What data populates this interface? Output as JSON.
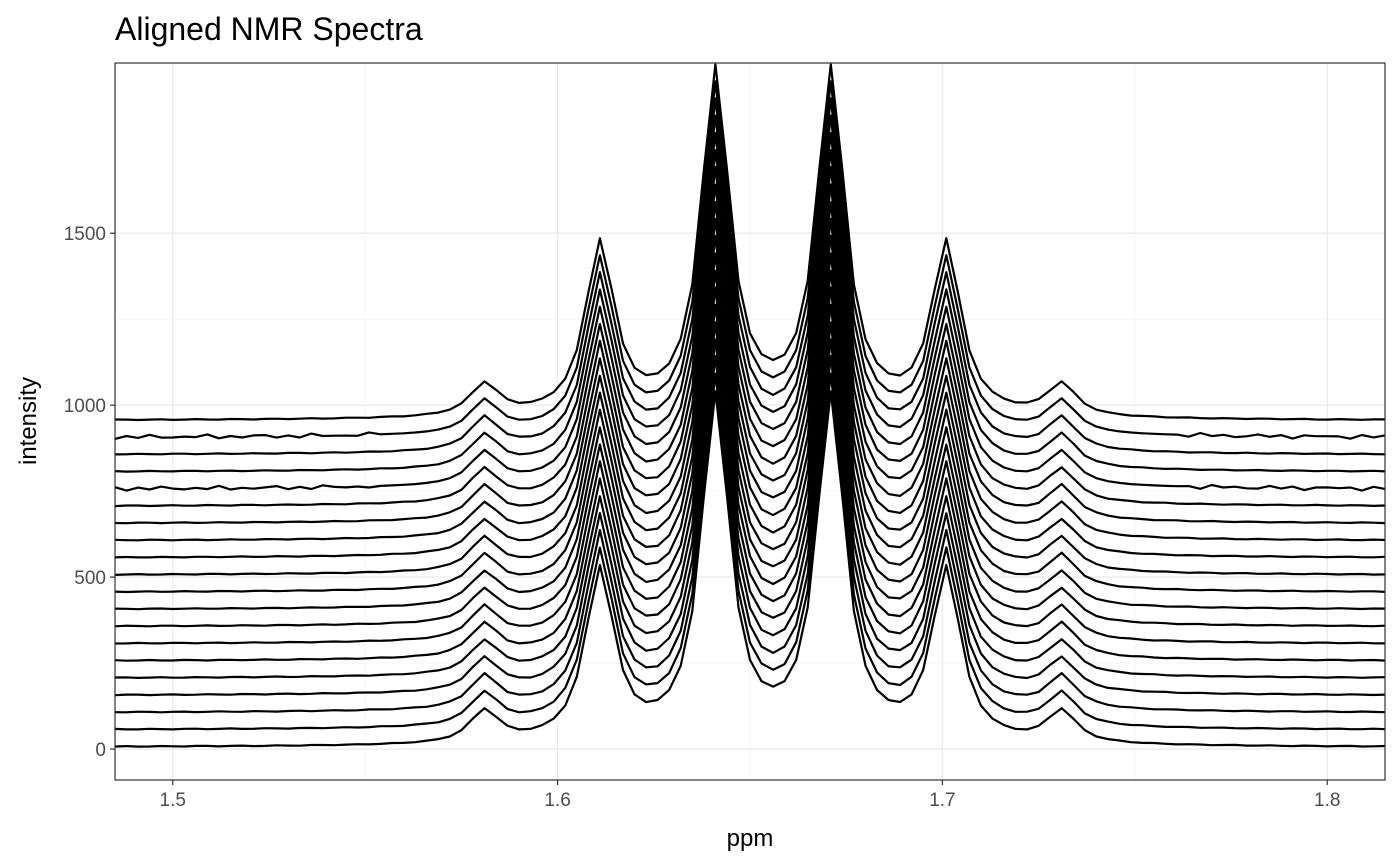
{
  "chart_data": {
    "type": "line",
    "title": "Aligned NMR Spectra",
    "xlabel": "ppm",
    "ylabel": "intensity",
    "xlim": [
      1.485,
      1.815
    ],
    "ylim": [
      -90,
      1995
    ],
    "x_ticks": [
      1.5,
      1.6,
      1.7,
      1.8
    ],
    "x_tick_labels": [
      "1.5",
      "1.6",
      "1.7",
      "1.8"
    ],
    "y_ticks": [
      0,
      500,
      1000,
      1500
    ],
    "y_tick_labels": [
      "0",
      "500",
      "1000",
      "1500"
    ],
    "grid": true,
    "legend": "none",
    "line_color": "#000000",
    "series_count": 20,
    "series_offset_step": 50,
    "peaks": [
      {
        "ppm": 1.581,
        "height": 95
      },
      {
        "ppm": 1.611,
        "height": 500
      },
      {
        "ppm": 1.641,
        "height": 1000
      },
      {
        "ppm": 1.671,
        "height": 1000
      },
      {
        "ppm": 1.701,
        "height": 500
      },
      {
        "ppm": 1.731,
        "height": 95
      }
    ],
    "peak_linewidth_ppm": 0.0045,
    "noisy_series_indices": [
      15,
      18
    ]
  }
}
